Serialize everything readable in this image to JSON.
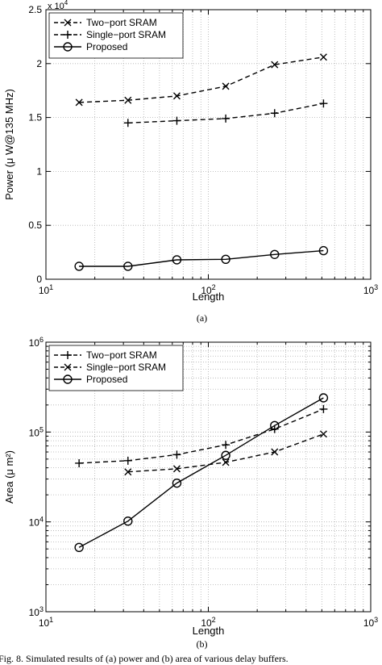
{
  "chart_data": [
    {
      "type": "line",
      "title": "",
      "xlabel": "Length",
      "ylabel": "Power (μ W@135 MHz)",
      "y_multiplier": "x 10",
      "y_multiplier_exp": "4",
      "xscale": "log",
      "yscale": "linear",
      "xlim": [
        10,
        1000
      ],
      "ylim": [
        0,
        25000
      ],
      "x_ticks": [
        10,
        100,
        1000
      ],
      "x_tick_labels": [
        {
          "base": "10",
          "exp": "1"
        },
        {
          "base": "10",
          "exp": "2"
        },
        {
          "base": "10",
          "exp": "3"
        }
      ],
      "y_ticks": [
        0,
        5000,
        10000,
        15000,
        20000,
        25000
      ],
      "y_tick_labels": [
        "0",
        "0.5",
        "1",
        "1.5",
        "2",
        "2.5"
      ],
      "grid": true,
      "legend_position": "top-left",
      "caption": "(a)",
      "series": [
        {
          "name": "Two−port SRAM",
          "marker": "x",
          "dash": "dashed",
          "x": [
            16,
            32,
            64,
            128,
            256,
            512
          ],
          "y": [
            16400,
            16600,
            17000,
            17900,
            19900,
            20600
          ]
        },
        {
          "name": "Single−port SRAM",
          "marker": "+",
          "dash": "dashed",
          "x": [
            32,
            64,
            128,
            256,
            512
          ],
          "y": [
            14500,
            14700,
            14900,
            15400,
            16300
          ]
        },
        {
          "name": "Proposed",
          "marker": "o",
          "dash": "solid",
          "x": [
            16,
            32,
            64,
            128,
            256,
            512
          ],
          "y": [
            1200,
            1200,
            1800,
            1850,
            2300,
            2650
          ]
        }
      ]
    },
    {
      "type": "line",
      "title": "",
      "xlabel": "Length",
      "ylabel": "Area (μ m²)",
      "xscale": "log",
      "yscale": "log",
      "xlim": [
        10,
        1000
      ],
      "ylim": [
        1000,
        1000000
      ],
      "x_ticks": [
        10,
        100,
        1000
      ],
      "x_tick_labels": [
        {
          "base": "10",
          "exp": "1"
        },
        {
          "base": "10",
          "exp": "2"
        },
        {
          "base": "10",
          "exp": "3"
        }
      ],
      "y_ticks": [
        1000,
        10000,
        100000,
        1000000
      ],
      "y_tick_labels": [
        {
          "base": "10",
          "exp": "3"
        },
        {
          "base": "10",
          "exp": "4"
        },
        {
          "base": "10",
          "exp": "5"
        },
        {
          "base": "10",
          "exp": "6"
        }
      ],
      "grid": true,
      "legend_position": "top-left",
      "caption": "(b)",
      "series": [
        {
          "name": "Two−port SRAM",
          "marker": "+",
          "dash": "dashed",
          "x": [
            16,
            32,
            64,
            128,
            256,
            512
          ],
          "y": [
            45000,
            48000,
            56000,
            72000,
            108000,
            180000
          ]
        },
        {
          "name": "Single−port SRAM",
          "marker": "x",
          "dash": "dashed",
          "x": [
            32,
            64,
            128,
            256,
            512
          ],
          "y": [
            36000,
            39000,
            46000,
            60000,
            95000
          ]
        },
        {
          "name": "Proposed",
          "marker": "o",
          "dash": "solid",
          "x": [
            16,
            32,
            64,
            128,
            256,
            512
          ],
          "y": [
            5200,
            10200,
            27000,
            55000,
            118000,
            240000
          ]
        }
      ]
    }
  ],
  "caption_fragment": "Fig. 8.   Simulated results of (a) power and (b) area of various delay buffers."
}
